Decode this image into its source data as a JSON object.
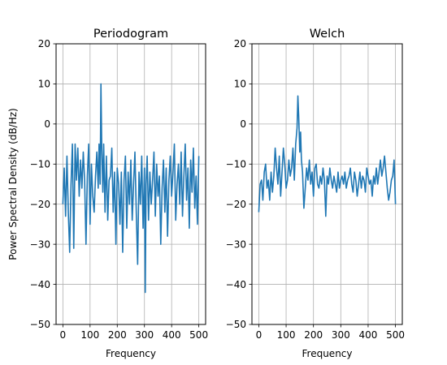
{
  "chart_data": [
    {
      "type": "line",
      "title": "Periodogram",
      "xlabel": "Frequency",
      "ylabel": "Power Spectral Density (dB/Hz)",
      "xlim": [
        -25,
        525
      ],
      "ylim": [
        -50,
        20
      ],
      "xticks": [
        0,
        100,
        200,
        300,
        400,
        500
      ],
      "yticks": [
        -50,
        -40,
        -30,
        -20,
        -10,
        0,
        10,
        20
      ],
      "grid": true,
      "series": [
        {
          "color": "#1f77b4",
          "x": [
            0,
            5,
            10,
            15,
            20,
            25,
            30,
            35,
            40,
            45,
            50,
            55,
            60,
            65,
            70,
            75,
            80,
            85,
            90,
            95,
            100,
            105,
            110,
            115,
            120,
            125,
            130,
            133,
            137,
            140,
            143,
            147,
            150,
            155,
            160,
            165,
            170,
            175,
            180,
            185,
            190,
            195,
            200,
            205,
            210,
            215,
            220,
            225,
            230,
            235,
            240,
            245,
            250,
            255,
            260,
            265,
            270,
            275,
            280,
            285,
            290,
            295,
            300,
            303,
            306,
            310,
            315,
            320,
            325,
            330,
            335,
            340,
            345,
            350,
            355,
            360,
            365,
            370,
            375,
            380,
            385,
            390,
            395,
            400,
            405,
            410,
            415,
            420,
            425,
            430,
            435,
            440,
            445,
            450,
            455,
            460,
            465,
            470,
            475,
            480,
            485,
            490,
            495,
            500
          ],
          "y": [
            -20,
            -11,
            -23,
            -8,
            -22,
            -32,
            -15,
            -5,
            -31,
            -5,
            -14,
            -6,
            -18,
            -9,
            -16,
            -7,
            -14,
            -30,
            -13,
            -5,
            -25,
            -10,
            -18,
            -22,
            -13,
            -7,
            -16,
            -5,
            -15,
            10,
            -6,
            -17,
            -5,
            -22,
            -8,
            -24,
            -14,
            -13,
            -6,
            -22,
            -12,
            -30,
            -11,
            -15,
            -25,
            -12,
            -32,
            -14,
            -8,
            -26,
            -12,
            -20,
            -9,
            -24,
            -15,
            -7,
            -22,
            -35,
            -12,
            -20,
            -8,
            -26,
            -11,
            -42,
            -15,
            -8,
            -24,
            -12,
            -20,
            -14,
            -7,
            -23,
            -10,
            -18,
            -13,
            -30,
            -16,
            -9,
            -22,
            -11,
            -28,
            -14,
            -8,
            -18,
            -12,
            -5,
            -24,
            -15,
            -10,
            -20,
            -7,
            -23,
            -13,
            -5,
            -19,
            -11,
            -26,
            -9,
            -17,
            -6,
            -21,
            -13,
            -25,
            -8
          ]
        }
      ]
    },
    {
      "type": "line",
      "title": "Welch",
      "xlabel": "Frequency",
      "xlim": [
        -25,
        525
      ],
      "ylim": [
        -50,
        20
      ],
      "xticks": [
        0,
        100,
        200,
        300,
        400,
        500
      ],
      "yticks": [
        -50,
        -40,
        -30,
        -20,
        -10,
        0,
        10,
        20
      ],
      "grid": true,
      "series": [
        {
          "color": "#1f77b4",
          "x": [
            0,
            5,
            10,
            15,
            20,
            25,
            30,
            35,
            40,
            45,
            50,
            55,
            60,
            65,
            70,
            75,
            80,
            85,
            90,
            95,
            100,
            105,
            110,
            115,
            120,
            125,
            130,
            135,
            140,
            143,
            146,
            150,
            153,
            156,
            160,
            165,
            170,
            175,
            180,
            185,
            190,
            195,
            200,
            205,
            210,
            215,
            220,
            225,
            230,
            235,
            240,
            245,
            250,
            255,
            260,
            265,
            270,
            275,
            280,
            285,
            290,
            295,
            300,
            305,
            310,
            315,
            320,
            325,
            330,
            335,
            340,
            345,
            350,
            355,
            360,
            365,
            370,
            375,
            380,
            385,
            390,
            395,
            400,
            405,
            410,
            415,
            420,
            425,
            430,
            435,
            440,
            445,
            450,
            455,
            460,
            465,
            470,
            475,
            480,
            485,
            490,
            495,
            500
          ],
          "y": [
            -22,
            -15,
            -14,
            -19,
            -12,
            -10,
            -16,
            -14,
            -19,
            -12,
            -17,
            -13,
            -6,
            -11,
            -15,
            -8,
            -18,
            -12,
            -6,
            -10,
            -16,
            -14,
            -9,
            -13,
            -11,
            -6,
            -14,
            -5,
            -1,
            7,
            2,
            -7,
            -2,
            -9,
            -12,
            -21,
            -16,
            -11,
            -14,
            -9,
            -15,
            -12,
            -18,
            -11,
            -10,
            -15,
            -16,
            -13,
            -15,
            -11,
            -14,
            -23,
            -13,
            -15,
            -11,
            -14,
            -16,
            -13,
            -15,
            -17,
            -12,
            -16,
            -14,
            -13,
            -15,
            -12,
            -16,
            -14,
            -13,
            -11,
            -15,
            -17,
            -12,
            -14,
            -18,
            -15,
            -12,
            -16,
            -13,
            -14,
            -17,
            -11,
            -13,
            -15,
            -14,
            -18,
            -13,
            -15,
            -11,
            -15,
            -12,
            -9,
            -13,
            -11,
            -8,
            -12,
            -16,
            -19,
            -17,
            -14,
            -13,
            -9,
            -20
          ]
        }
      ]
    }
  ]
}
